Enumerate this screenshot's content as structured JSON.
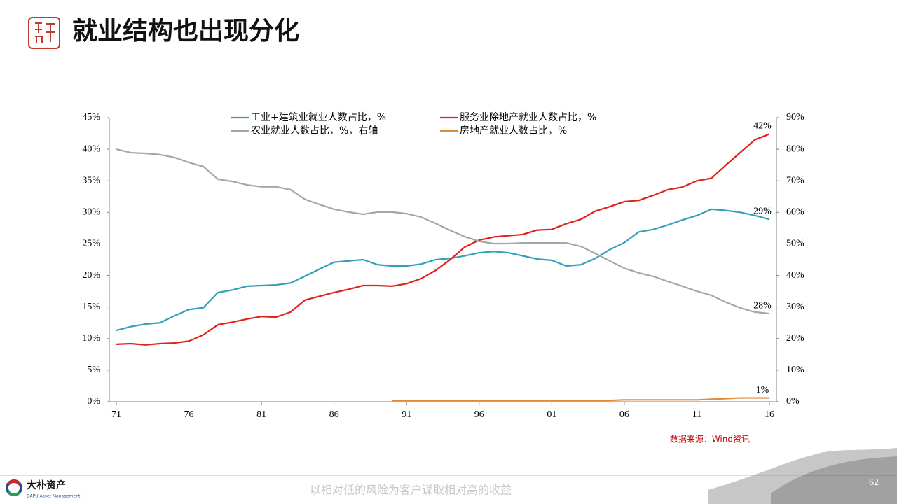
{
  "chart_data": {
    "type": "line",
    "title": "就业结构也出现分化",
    "categories": [
      "71",
      null,
      null,
      null,
      null,
      "76",
      null,
      null,
      null,
      null,
      "81",
      null,
      null,
      null,
      null,
      "86",
      null,
      null,
      null,
      null,
      "91",
      null,
      null,
      null,
      null,
      "96",
      null,
      null,
      null,
      null,
      "01",
      null,
      null,
      null,
      null,
      "06",
      null,
      null,
      null,
      null,
      "11",
      null,
      null,
      null,
      null,
      "16"
    ],
    "ylim": [
      0,
      45
    ],
    "yticks": [
      {
        "value": 0,
        "label": "0%"
      },
      {
        "value": 5,
        "label": "5%"
      },
      {
        "value": 10,
        "label": "10%"
      },
      {
        "value": 15,
        "label": "15%"
      },
      {
        "value": 20,
        "label": "20%"
      },
      {
        "value": 25,
        "label": "25%"
      },
      {
        "value": 30,
        "label": "30%"
      },
      {
        "value": 35,
        "label": "35%"
      },
      {
        "value": 40,
        "label": "40%"
      },
      {
        "value": 45,
        "label": "45%"
      }
    ],
    "y2lim": [
      0,
      90
    ],
    "y2ticks": [
      {
        "value": 0,
        "label": "0%"
      },
      {
        "value": 10,
        "label": "10%"
      },
      {
        "value": 20,
        "label": "20%"
      },
      {
        "value": 30,
        "label": "30%"
      },
      {
        "value": 40,
        "label": "40%"
      },
      {
        "value": 50,
        "label": "50%"
      },
      {
        "value": 60,
        "label": "60%"
      },
      {
        "value": 70,
        "label": "70%"
      },
      {
        "value": 80,
        "label": "80%"
      },
      {
        "value": 90,
        "label": "90%"
      }
    ],
    "grid": false,
    "series": [
      {
        "name": "工业+建筑业就业人数占比，%",
        "color": "#31a0b8",
        "values": [
          11.3,
          11.9,
          12.3,
          12.5,
          13.6,
          14.6,
          14.9,
          17.3,
          17.7,
          18.3,
          18.4,
          18.5,
          18.8,
          19.9,
          21.0,
          22.1,
          22.3,
          22.5,
          21.7,
          21.5,
          21.5,
          21.8,
          22.5,
          22.7,
          23.1,
          23.6,
          23.8,
          23.6,
          23.1,
          22.6,
          22.4,
          21.5,
          21.7,
          22.7,
          24.1,
          25.2,
          26.9,
          27.3,
          28.0,
          28.8,
          29.5,
          30.5,
          30.3,
          30.0,
          29.5,
          28.9
        ],
        "value_labels": [
          null,
          null,
          null,
          null,
          null,
          null,
          null,
          null,
          null,
          null,
          null,
          null,
          null,
          null,
          null,
          null,
          null,
          null,
          null,
          null,
          null,
          null,
          null,
          null,
          null,
          null,
          null,
          null,
          null,
          null,
          null,
          null,
          null,
          null,
          null,
          null,
          null,
          null,
          null,
          null,
          null,
          null,
          null,
          null,
          null,
          "29%"
        ]
      },
      {
        "name": "服务业除地产就业人数占比，%",
        "color": "#e3211c",
        "values": [
          9.1,
          9.2,
          9.0,
          9.2,
          9.3,
          9.6,
          10.6,
          12.2,
          12.6,
          13.1,
          13.5,
          13.4,
          14.2,
          16.1,
          16.7,
          17.3,
          17.8,
          18.4,
          18.4,
          18.3,
          18.7,
          19.5,
          20.8,
          22.5,
          24.5,
          25.6,
          26.1,
          26.3,
          26.5,
          27.2,
          27.3,
          28.2,
          28.9,
          30.2,
          30.9,
          31.7,
          31.9,
          32.7,
          33.6,
          34.0,
          35.0,
          35.4,
          37.5,
          39.5,
          41.5,
          42.4
        ],
        "value_labels": [
          null,
          null,
          null,
          null,
          null,
          null,
          null,
          null,
          null,
          null,
          null,
          null,
          null,
          null,
          null,
          null,
          null,
          null,
          null,
          null,
          null,
          null,
          null,
          null,
          null,
          null,
          null,
          null,
          null,
          null,
          null,
          null,
          null,
          null,
          null,
          null,
          null,
          null,
          null,
          null,
          null,
          null,
          null,
          null,
          null,
          "42%"
        ]
      },
      {
        "name": "农业就业人数占比，%，右轴",
        "color": "#a6a6a6",
        "axis": "y2",
        "values": [
          80.0,
          78.9,
          78.7,
          78.3,
          77.4,
          75.8,
          74.5,
          70.5,
          69.8,
          68.7,
          68.1,
          68.1,
          67.2,
          64.1,
          62.5,
          61.0,
          60.1,
          59.4,
          60.1,
          60.1,
          59.6,
          58.5,
          56.5,
          54.3,
          52.3,
          50.8,
          50.1,
          50.1,
          50.3,
          50.3,
          50.3,
          50.3,
          49.2,
          47.0,
          44.6,
          42.3,
          40.8,
          39.7,
          38.1,
          36.6,
          35.0,
          33.7,
          31.5,
          29.7,
          28.4,
          27.9
        ],
        "value_labels": [
          null,
          null,
          null,
          null,
          null,
          null,
          null,
          null,
          null,
          null,
          null,
          null,
          null,
          null,
          null,
          null,
          null,
          null,
          null,
          null,
          null,
          null,
          null,
          null,
          null,
          null,
          null,
          null,
          null,
          null,
          null,
          null,
          null,
          null,
          null,
          null,
          null,
          null,
          null,
          null,
          null,
          null,
          null,
          null,
          null,
          "28%"
        ]
      },
      {
        "name": "房地产就业人数占比，%",
        "color": "#e58a3b",
        "values": [
          null,
          null,
          null,
          null,
          null,
          null,
          null,
          null,
          null,
          null,
          null,
          null,
          null,
          null,
          null,
          null,
          null,
          null,
          null,
          0.2,
          0.2,
          0.2,
          0.2,
          0.2,
          0.2,
          0.2,
          0.2,
          0.2,
          0.2,
          0.2,
          0.2,
          0.2,
          0.2,
          0.2,
          0.2,
          0.3,
          0.3,
          0.3,
          0.3,
          0.3,
          0.3,
          0.4,
          0.5,
          0.6,
          0.6,
          0.6
        ],
        "value_labels": [
          null,
          null,
          null,
          null,
          null,
          null,
          null,
          null,
          null,
          null,
          null,
          null,
          null,
          null,
          null,
          null,
          null,
          null,
          null,
          null,
          null,
          null,
          null,
          null,
          null,
          null,
          null,
          null,
          null,
          null,
          null,
          null,
          null,
          null,
          null,
          null,
          null,
          null,
          null,
          null,
          null,
          null,
          null,
          null,
          null,
          "1%"
        ]
      }
    ]
  },
  "slide": {
    "source": "数据来源：Wind资讯",
    "slogan": "以相对低的风险为客户谋取相对高的收益",
    "page": "62",
    "brand": "大朴资产",
    "brand_en": "DAPU Asset Management"
  }
}
